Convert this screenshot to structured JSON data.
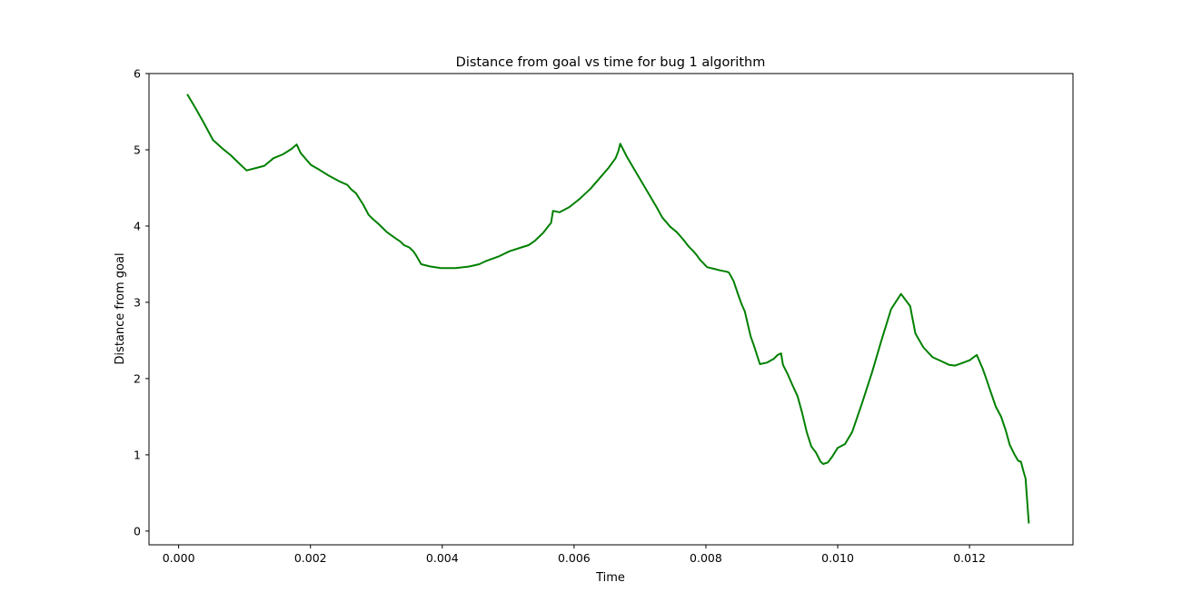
{
  "chart_data": {
    "type": "line",
    "title": "Distance from goal vs time for bug 1 algorithm",
    "xlabel": "Time",
    "ylabel": "Distance from goal",
    "xlim": [
      -0.00045,
      0.01357
    ],
    "ylim": [
      -0.18,
      6.0
    ],
    "xticks": [
      0.0,
      0.002,
      0.004,
      0.006,
      0.008,
      0.01,
      0.012
    ],
    "xtick_labels": [
      "0.000",
      "0.002",
      "0.004",
      "0.006",
      "0.008",
      "0.010",
      "0.012"
    ],
    "yticks": [
      0,
      1,
      2,
      3,
      4,
      5,
      6
    ],
    "ytick_labels": [
      "0",
      "1",
      "2",
      "3",
      "4",
      "5",
      "6"
    ],
    "grid": false,
    "series": [
      {
        "color": "#008000",
        "x": [
          0.00013,
          0.00026,
          0.00039,
          0.00052,
          0.00066,
          0.00079,
          0.00092,
          0.00103,
          0.00117,
          0.0013,
          0.00144,
          0.00158,
          0.00171,
          0.00179,
          0.00185,
          0.00193,
          0.00201,
          0.00213,
          0.00228,
          0.00243,
          0.00256,
          0.00262,
          0.00269,
          0.0028,
          0.00288,
          0.00295,
          0.00303,
          0.00316,
          0.00329,
          0.00336,
          0.00342,
          0.0035,
          0.00356,
          0.0036,
          0.00368,
          0.00382,
          0.00398,
          0.0042,
          0.00441,
          0.00456,
          0.00466,
          0.00485,
          0.00502,
          0.0052,
          0.00531,
          0.00541,
          0.00553,
          0.00561,
          0.00565,
          0.00568,
          0.00578,
          0.00593,
          0.00609,
          0.00625,
          0.0064,
          0.00652,
          0.00663,
          0.00667,
          0.0067,
          0.0068,
          0.00693,
          0.0071,
          0.00725,
          0.00734,
          0.00746,
          0.00756,
          0.00766,
          0.00774,
          0.00781,
          0.00786,
          0.00791,
          0.00802,
          0.00812,
          0.00821,
          0.00832,
          0.00835,
          0.00842,
          0.00849,
          0.00854,
          0.00859,
          0.00865,
          0.00868,
          0.00873,
          0.00882,
          0.00893,
          0.00903,
          0.00909,
          0.00914,
          0.00917,
          0.00924,
          0.00931,
          0.00939,
          0.00946,
          0.00953,
          0.0096,
          0.00967,
          0.00974,
          0.00978,
          0.00985,
          0.00992,
          0.01,
          0.01011,
          0.01022,
          0.01037,
          0.01052,
          0.01066,
          0.01081,
          0.01096,
          0.0111,
          0.01113,
          0.01118,
          0.0113,
          0.01144,
          0.01159,
          0.01169,
          0.01178,
          0.01188,
          0.012,
          0.01211,
          0.0122,
          0.01225,
          0.01232,
          0.0124,
          0.01248,
          0.01255,
          0.01261,
          0.01268,
          0.01274,
          0.01278,
          0.01282,
          0.01285,
          0.0129
        ],
        "y": [
          5.73,
          5.54,
          5.34,
          5.13,
          5.02,
          4.93,
          4.82,
          4.73,
          4.76,
          4.79,
          4.89,
          4.94,
          5.01,
          5.07,
          4.96,
          4.88,
          4.8,
          4.74,
          4.66,
          4.59,
          4.54,
          4.48,
          4.43,
          4.28,
          4.15,
          4.09,
          4.03,
          3.92,
          3.84,
          3.8,
          3.75,
          3.72,
          3.67,
          3.62,
          3.5,
          3.47,
          3.45,
          3.45,
          3.47,
          3.5,
          3.54,
          3.6,
          3.67,
          3.72,
          3.75,
          3.81,
          3.91,
          4.0,
          4.04,
          4.2,
          4.18,
          4.25,
          4.36,
          4.49,
          4.64,
          4.76,
          4.89,
          4.98,
          5.08,
          4.91,
          4.72,
          4.47,
          4.25,
          4.11,
          3.99,
          3.92,
          3.82,
          3.73,
          3.67,
          3.62,
          3.56,
          3.46,
          3.44,
          3.42,
          3.4,
          3.39,
          3.28,
          3.1,
          2.98,
          2.88,
          2.66,
          2.55,
          2.43,
          2.19,
          2.21,
          2.26,
          2.31,
          2.33,
          2.18,
          2.06,
          1.92,
          1.77,
          1.55,
          1.3,
          1.11,
          1.03,
          0.91,
          0.88,
          0.9,
          0.98,
          1.09,
          1.14,
          1.3,
          1.68,
          2.08,
          2.49,
          2.91,
          3.11,
          2.95,
          2.81,
          2.59,
          2.41,
          2.28,
          2.22,
          2.18,
          2.17,
          2.2,
          2.24,
          2.31,
          2.13,
          2.01,
          1.83,
          1.63,
          1.5,
          1.32,
          1.13,
          1.01,
          0.92,
          0.91,
          0.78,
          0.69,
          0.1
        ]
      }
    ]
  }
}
